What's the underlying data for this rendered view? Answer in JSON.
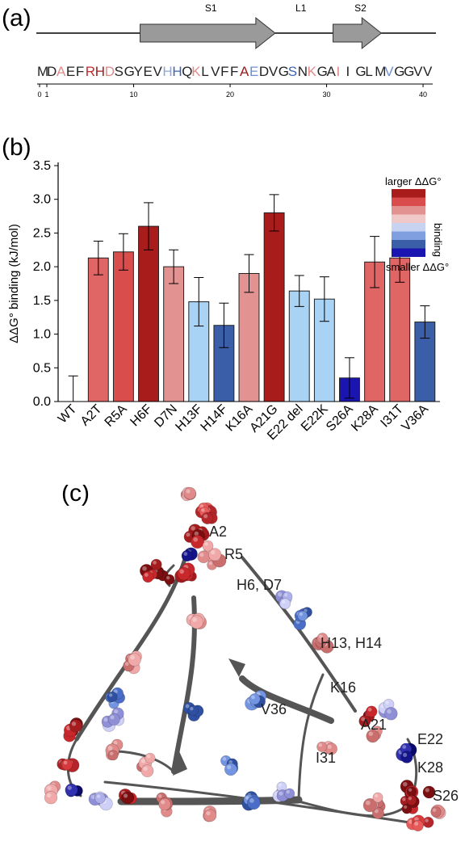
{
  "panels": {
    "a": "(a)",
    "b": "(b)",
    "c": "(c)"
  },
  "topology": {
    "segments": [
      {
        "label": "S1",
        "from": 10,
        "to": 24
      },
      {
        "label": "L1",
        "at": 27
      },
      {
        "label": "S2",
        "from": 30,
        "to": 35
      }
    ],
    "sequence": [
      {
        "aa": "M",
        "color": "#222222"
      },
      {
        "aa": "D",
        "color": "#222222"
      },
      {
        "aa": "A",
        "color": "#e08a8a"
      },
      {
        "aa": "E",
        "color": "#222222"
      },
      {
        "aa": "F",
        "color": "#222222"
      },
      {
        "aa": "R",
        "color": "#c8282b"
      },
      {
        "aa": "H",
        "color": "#9b1b1b"
      },
      {
        "aa": "D",
        "color": "#e08a8a"
      },
      {
        "aa": "S",
        "color": "#222222"
      },
      {
        "aa": "G",
        "color": "#222222"
      },
      {
        "aa": "Y",
        "color": "#222222"
      },
      {
        "aa": "E",
        "color": "#222222"
      },
      {
        "aa": "V",
        "color": "#222222"
      },
      {
        "aa": "H",
        "color": "#8aa6d6"
      },
      {
        "aa": "H",
        "color": "#3f62b0"
      },
      {
        "aa": "Q",
        "color": "#222222"
      },
      {
        "aa": "K",
        "color": "#e08a8a"
      },
      {
        "aa": "L",
        "color": "#222222"
      },
      {
        "aa": "V",
        "color": "#222222"
      },
      {
        "aa": "F",
        "color": "#222222"
      },
      {
        "aa": "F",
        "color": "#222222"
      },
      {
        "aa": "A",
        "color": "#9b1b1b"
      },
      {
        "aa": "E",
        "color": "#6f8fd0"
      },
      {
        "aa": "D",
        "color": "#222222"
      },
      {
        "aa": "V",
        "color": "#222222"
      },
      {
        "aa": "G",
        "color": "#222222"
      },
      {
        "aa": "S",
        "color": "#3f62b0"
      },
      {
        "aa": "N",
        "color": "#222222"
      },
      {
        "aa": "K",
        "color": "#e08a8a"
      },
      {
        "aa": "G",
        "color": "#222222"
      },
      {
        "aa": "A",
        "color": "#222222"
      },
      {
        "aa": "I",
        "color": "#e08a8a"
      },
      {
        "aa": "I",
        "color": "#222222"
      },
      {
        "aa": "G",
        "color": "#222222"
      },
      {
        "aa": "L",
        "color": "#222222"
      },
      {
        "aa": "M",
        "color": "#222222"
      },
      {
        "aa": "V",
        "color": "#6f8fd0"
      },
      {
        "aa": "G",
        "color": "#222222"
      },
      {
        "aa": "G",
        "color": "#222222"
      },
      {
        "aa": "V",
        "color": "#222222"
      },
      {
        "aa": "V",
        "color": "#222222"
      }
    ],
    "axis_ticks": [
      "0",
      "1",
      "10",
      "20",
      "30",
      "40"
    ]
  },
  "chart_data": {
    "type": "bar",
    "ylabel": "ΔΔG° binding (kJ/mol)",
    "ylim": [
      0,
      3.5
    ],
    "yticks": [
      "0.0",
      "0.5",
      "1.0",
      "1.5",
      "2.0",
      "2.5",
      "3.0",
      "3.5"
    ],
    "categories": [
      "WT",
      "A2T",
      "R5A",
      "H6F",
      "D7N",
      "H13F",
      "H14F",
      "K16A",
      "A21G",
      "E22 del",
      "E22K",
      "S26A",
      "K28A",
      "I31T",
      "V36A"
    ],
    "values": [
      0.0,
      2.13,
      2.22,
      2.6,
      2.0,
      1.48,
      1.13,
      1.9,
      2.8,
      1.64,
      1.52,
      0.35,
      2.07,
      2.13,
      1.18
    ],
    "errors": [
      0.38,
      0.25,
      0.27,
      0.35,
      0.25,
      0.36,
      0.33,
      0.28,
      0.27,
      0.23,
      0.33,
      0.3,
      0.38,
      0.36,
      0.24
    ],
    "colors": [
      "#ffffff",
      "#e06666",
      "#d94d4d",
      "#a81c1c",
      "#e39292",
      "#a9d3f5",
      "#3b5ea8",
      "#e39292",
      "#a81c1c",
      "#a9d3f5",
      "#a9d3f5",
      "#1a14b0",
      "#e06666",
      "#e06666",
      "#3b5ea8"
    ],
    "legend": {
      "top": "larger ΔΔG°",
      "side": "binding",
      "bottom": "smaller ΔΔG°",
      "scale_colors": [
        "#a81c1c",
        "#d94d4d",
        "#e39292",
        "#f0c8c8",
        "#c7d3f0",
        "#7f9fe0",
        "#3b5ea8",
        "#1a14b0"
      ]
    }
  },
  "structure_labels": [
    "A2",
    "R5",
    "H6, D7",
    "H13, H14",
    "K16",
    "V36",
    "A21",
    "E22",
    "I31",
    "K28",
    "S26"
  ]
}
